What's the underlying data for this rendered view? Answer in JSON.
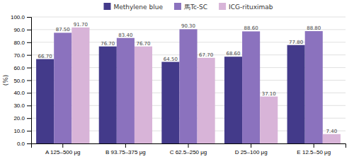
{
  "chart_data": {
    "type": "bar",
    "categories": [
      "A 125–500 μg",
      "B 93.75–375 μg",
      "C 62.5–250 μg",
      "D 25–100 μg",
      "E 12.5–50 μg"
    ],
    "series": [
      {
        "name": "Methylene blue",
        "color": "#433a8a",
        "values": [
          66.7,
          76.7,
          64.5,
          68.6,
          77.8
        ],
        "value_labels": [
          "66.70",
          "76.70",
          "64.50",
          "68.60",
          "77.80"
        ]
      },
      {
        "name": "馬Tc-SC",
        "color": "#8b72be",
        "values": [
          87.5,
          83.4,
          90.3,
          88.6,
          88.8
        ],
        "value_labels": [
          "87.50",
          "83.40",
          "90.30",
          "88.60",
          "88.80"
        ]
      },
      {
        "name": "ICG-rituximab",
        "color": "#d8b4d8",
        "values": [
          91.7,
          76.7,
          67.7,
          37.1,
          7.4
        ],
        "value_labels": [
          "91.70",
          "76.70",
          "67.70",
          "37.10",
          "7.40"
        ]
      }
    ],
    "y_label": "(%)",
    "ylim": [
      0,
      100
    ],
    "yticks": [
      {
        "value": 0,
        "label": "0.0"
      },
      {
        "value": 10,
        "label": "10.0"
      },
      {
        "value": 20,
        "label": "20.0"
      },
      {
        "value": 30,
        "label": "30.0"
      },
      {
        "value": 40,
        "label": "40.0"
      },
      {
        "value": 50,
        "label": "50.0"
      },
      {
        "value": 60,
        "label": "60.0"
      },
      {
        "value": 70,
        "label": "70.0"
      },
      {
        "value": 80,
        "label": "80.0"
      },
      {
        "value": 90,
        "label": "90.0"
      },
      {
        "value": 100,
        "label": "100.0"
      }
    ],
    "grid": true,
    "legend": "top",
    "data_labels": true
  }
}
